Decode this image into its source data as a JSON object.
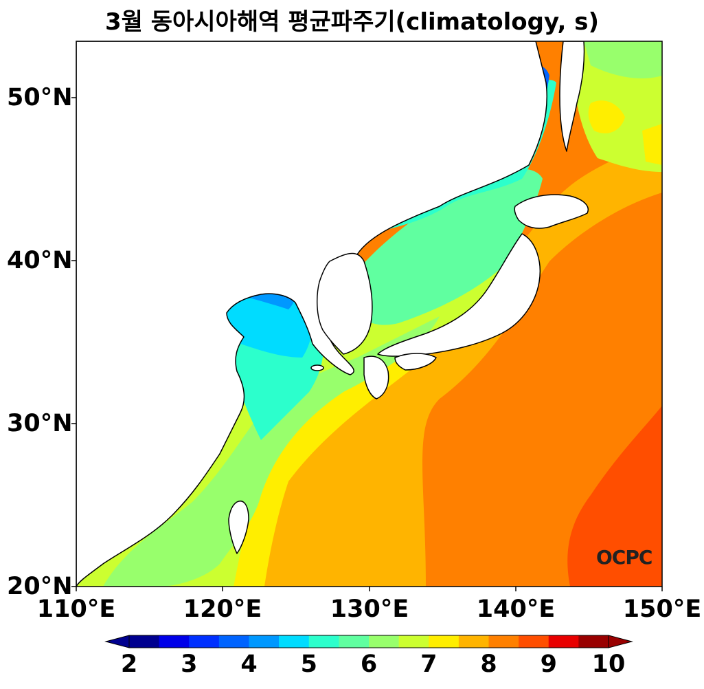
{
  "title": "3월 동아시아해역 평균파주기(climatology, s)",
  "logo": "OCPC",
  "lat_labels": [
    "50°N",
    "40°N",
    "30°N",
    "20°N"
  ],
  "lon_labels": [
    "110°E",
    "120°E",
    "130°E",
    "140°E",
    "150°E"
  ],
  "colorbar": {
    "labels": [
      "2",
      "3",
      "4",
      "5",
      "6",
      "7",
      "8",
      "9",
      "10"
    ],
    "levels": [
      2,
      2.5,
      3,
      3.5,
      4,
      4.5,
      5,
      5.5,
      6,
      6.5,
      7,
      7.5,
      8,
      8.5,
      9,
      9.5,
      10
    ],
    "colors": [
      "#00008f",
      "#0000e8",
      "#0030ff",
      "#0064ff",
      "#0098ff",
      "#00dcff",
      "#2cffcc",
      "#60ffa0",
      "#98ff6c",
      "#ccff30",
      "#ffee00",
      "#ffb400",
      "#ff8000",
      "#ff4e00",
      "#e80000",
      "#990000"
    ],
    "under_color": "#00008f",
    "over_color": "#990000"
  },
  "map": {
    "lon_range": [
      110,
      150
    ],
    "lat_range": [
      20,
      53.5
    ],
    "land_color": "#ffffff",
    "coastline_color": "#000000"
  }
}
